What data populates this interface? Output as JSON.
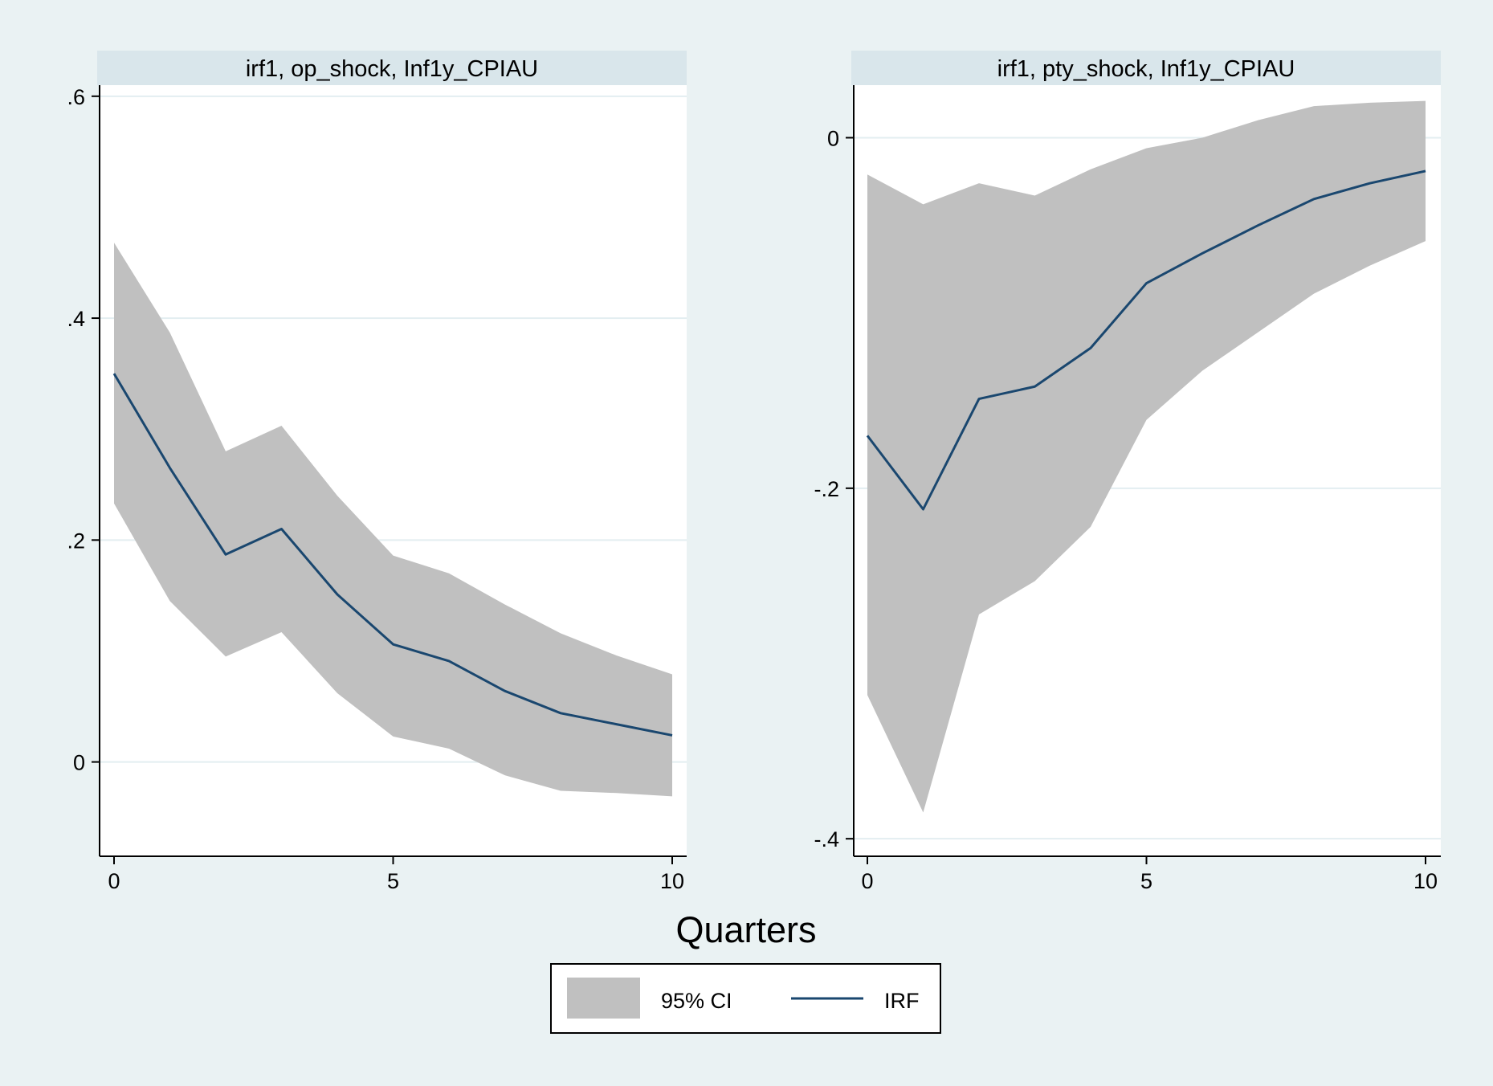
{
  "chart_data": [
    {
      "type": "area",
      "panel_title": "irf1, op_shock, Inf1y_CPIAU",
      "x": [
        0,
        1,
        2,
        3,
        4,
        5,
        6,
        7,
        8,
        9,
        10
      ],
      "xlim": [
        0,
        10
      ],
      "ylim": [
        -0.085,
        0.61
      ],
      "xticks": [
        0,
        5,
        10
      ],
      "xtick_labels": [
        "0",
        "5",
        "10"
      ],
      "yticks": [
        0,
        0.2,
        0.4,
        0.6
      ],
      "ytick_labels": [
        "0",
        ".2",
        ".4",
        ".6"
      ],
      "grid": true,
      "series": [
        {
          "name": "IRF",
          "values": [
            0.35,
            0.265,
            0.187,
            0.21,
            0.151,
            0.106,
            0.091,
            0.064,
            0.044,
            0.034,
            0.024
          ]
        },
        {
          "name": "95% CI",
          "lower": [
            0.233,
            0.145,
            0.095,
            0.117,
            0.062,
            0.023,
            0.012,
            -0.012,
            -0.026,
            -0.028,
            -0.031
          ],
          "upper": [
            0.468,
            0.387,
            0.28,
            0.303,
            0.24,
            0.186,
            0.17,
            0.142,
            0.116,
            0.096,
            0.079
          ]
        }
      ]
    },
    {
      "type": "area",
      "panel_title": "irf1, pty_shock, Inf1y_CPIAU",
      "x": [
        0,
        1,
        2,
        3,
        4,
        5,
        6,
        7,
        8,
        9,
        10
      ],
      "xlim": [
        0,
        10
      ],
      "ylim": [
        -0.41,
        0.03
      ],
      "xticks": [
        0,
        5,
        10
      ],
      "xtick_labels": [
        "0",
        "5",
        "10"
      ],
      "yticks": [
        -0.4,
        -0.2,
        0
      ],
      "ytick_labels": [
        "-.4",
        "-.2",
        "0"
      ],
      "grid": true,
      "series": [
        {
          "name": "IRF",
          "values": [
            -0.17,
            -0.212,
            -0.149,
            -0.142,
            -0.12,
            -0.083,
            -0.066,
            -0.05,
            -0.035,
            -0.026,
            -0.019
          ]
        },
        {
          "name": "95% CI",
          "lower": [
            -0.318,
            -0.385,
            -0.272,
            -0.253,
            -0.222,
            -0.161,
            -0.133,
            -0.111,
            -0.089,
            -0.073,
            -0.059
          ],
          "upper": [
            -0.021,
            -0.038,
            -0.026,
            -0.033,
            -0.018,
            -0.006,
            0.0,
            0.01,
            0.018,
            0.02,
            0.021
          ]
        }
      ]
    }
  ],
  "xlabel": "Quarters",
  "legend": {
    "position": "bottom-center",
    "items": [
      {
        "label": "95% CI",
        "kind": "band"
      },
      {
        "label": "IRF",
        "kind": "line"
      }
    ]
  },
  "colors": {
    "background": "#eaf2f3",
    "plot_background": "#ffffff",
    "strip": "#d9e6eb",
    "band": "#c0c0c0",
    "line": "#1a476f",
    "grid": "#e3eef1"
  }
}
